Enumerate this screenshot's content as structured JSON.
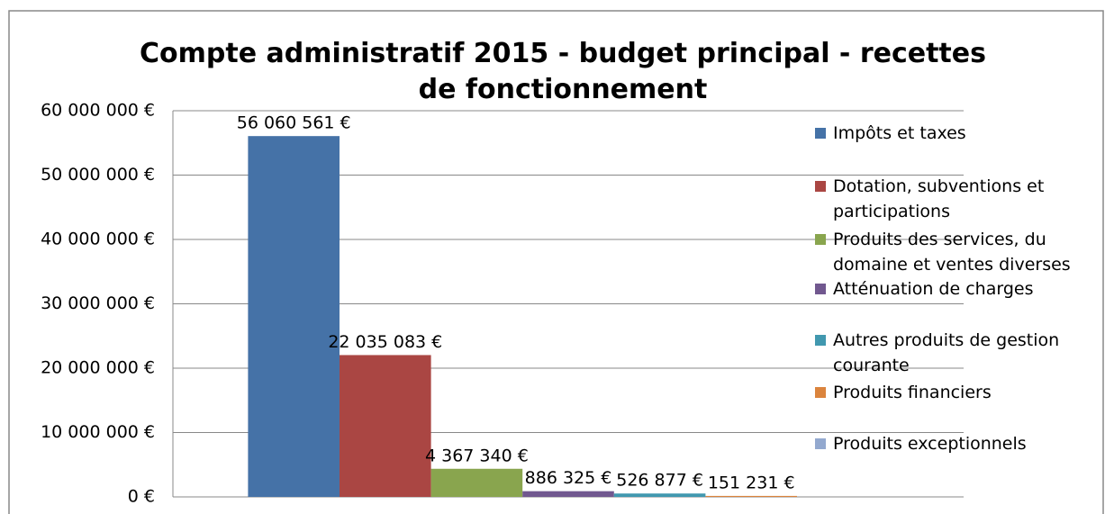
{
  "chart_data": {
    "type": "bar",
    "title": "Compte administratif 2015 - budget principal - recettes de fonctionnement",
    "categories": [
      null
    ],
    "series": [
      {
        "name": "Impôts et taxes",
        "color": "#4572a7",
        "values": [
          56060561
        ],
        "value_labels": [
          "56 060 561 €"
        ]
      },
      {
        "name": "Dotation, subventions et participations",
        "color": "#aa4643",
        "values": [
          22035083
        ],
        "value_labels": [
          "22 035 083 €"
        ]
      },
      {
        "name": "Produits des services, du domaine et ventes diverses",
        "color": "#89a54e",
        "values": [
          4367340
        ],
        "value_labels": [
          "4 367 340 €"
        ]
      },
      {
        "name": "Atténuation de charges",
        "color": "#71588f",
        "values": [
          886325
        ],
        "value_labels": [
          "886 325 €"
        ]
      },
      {
        "name": "Autres produits de gestion courante",
        "color": "#4198af",
        "values": [
          526877
        ],
        "value_labels": [
          "526 877 €"
        ]
      },
      {
        "name": "Produits financiers",
        "color": "#db843d",
        "values": [
          151231
        ],
        "value_labels": [
          "151 231 €"
        ]
      },
      {
        "name": "Produits exceptionnels",
        "color": "#93a9cf",
        "values": [
          null
        ],
        "value_labels": [
          null
        ]
      }
    ],
    "ylim": [
      0,
      60000000
    ],
    "yticks": [
      {
        "value": 0,
        "label": "0 €"
      },
      {
        "value": 10000000,
        "label": "10 000 000 €"
      },
      {
        "value": 20000000,
        "label": "20 000 000 €"
      },
      {
        "value": 30000000,
        "label": "30 000 000 €"
      },
      {
        "value": 40000000,
        "label": "40 000 000 €"
      },
      {
        "value": 50000000,
        "label": "50 000 000 €"
      },
      {
        "value": 60000000,
        "label": "60 000 000 €"
      }
    ],
    "grid": true,
    "legend": "right"
  }
}
